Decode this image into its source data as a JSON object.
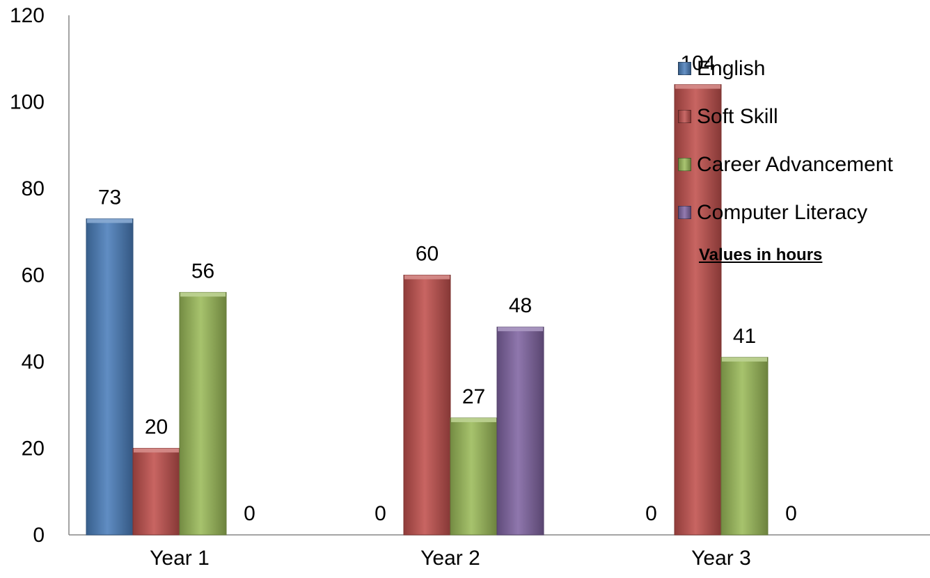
{
  "chart_data": {
    "type": "bar",
    "categories": [
      "Year 1",
      "Year 2",
      "Year 3"
    ],
    "series": [
      {
        "name": "English",
        "values": [
          73,
          0,
          0
        ],
        "color": "#4a7ebb"
      },
      {
        "name": "Soft Skill",
        "values": [
          20,
          60,
          104
        ],
        "color": "#c0504d"
      },
      {
        "name": "Career Advancement",
        "values": [
          56,
          27,
          41
        ],
        "color": "#9bbb59"
      },
      {
        "name": "Computer Literacy",
        "values": [
          0,
          48,
          0
        ],
        "color": "#8064a2"
      }
    ],
    "ylim": [
      0,
      120
    ],
    "yticks": [
      "0",
      "20",
      "40",
      "60",
      "80",
      "100",
      "120"
    ],
    "title": "",
    "xlabel": "",
    "ylabel": "",
    "legend_position": "right",
    "grid": false
  },
  "note": "Values in hours"
}
